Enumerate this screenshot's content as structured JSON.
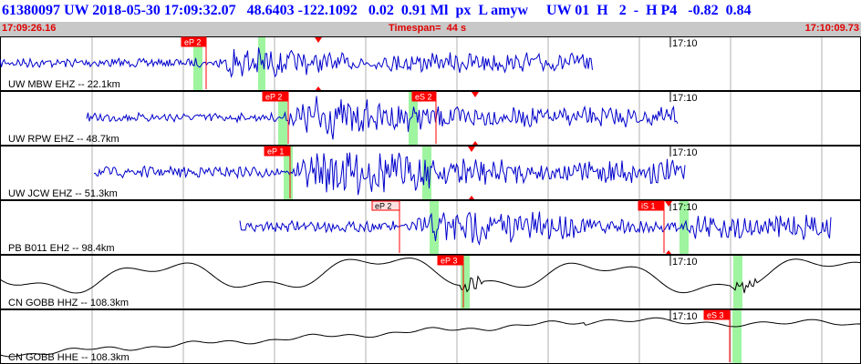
{
  "header": {
    "info_line": "61380097 UW 2018-05-30 17:09:32.07   48.6403 -122.1092   0.02  0.91 Ml  px  L amyw     UW 01  H   2  -  H P4   -0.82  0.84",
    "start_time": "17:09:26.16",
    "timespan_label": "Timespan=  44 s",
    "end_time": "17:10:09.73"
  },
  "colors": {
    "trace_vertical": "#0000cc",
    "trace_broadband": "#000000",
    "pick_box": "#ff0000",
    "pick_box_hollow": "#ffe0e0",
    "pick_line": "#ff0000",
    "green_window": "#9ff59f",
    "grid": "#b0b0b0",
    "header_text": "#0000ff",
    "header_sub": "#e00000"
  },
  "minute_tick_label": "17:10",
  "channels": [
    {
      "label": "UW MBW EHZ -- 22.1km",
      "color": "vertical",
      "picks": [
        {
          "label": "eP 2",
          "style": "filled"
        }
      ],
      "arrival_marker": true
    },
    {
      "label": "UW RPW EHZ -- 48.7km",
      "color": "vertical",
      "picks": [
        {
          "label": "eP 2",
          "style": "filled"
        },
        {
          "label": "eS 2",
          "style": "filled"
        }
      ],
      "arrival_marker": true
    },
    {
      "label": "UW JCW EHZ -- 51.3km",
      "color": "vertical",
      "picks": [
        {
          "label": "eP 1",
          "style": "filled"
        }
      ],
      "arrival_marker": true
    },
    {
      "label": "PB B011 EH2 -- 98.4km",
      "color": "vertical",
      "picks": [
        {
          "label": "eP 2",
          "style": "hollow"
        },
        {
          "label": "iS 1",
          "style": "filled"
        }
      ],
      "arrival_marker": true
    },
    {
      "label": "CN GOBB HHZ -- 108.3km",
      "color": "broadband",
      "picks": [
        {
          "label": "eP 3",
          "style": "filled"
        }
      ],
      "arrival_marker": false
    },
    {
      "label": "CN GOBB HHE -- 108.3km",
      "color": "broadband",
      "picks": [
        {
          "label": "eS 3",
          "style": "filled"
        }
      ],
      "arrival_marker": false
    }
  ]
}
